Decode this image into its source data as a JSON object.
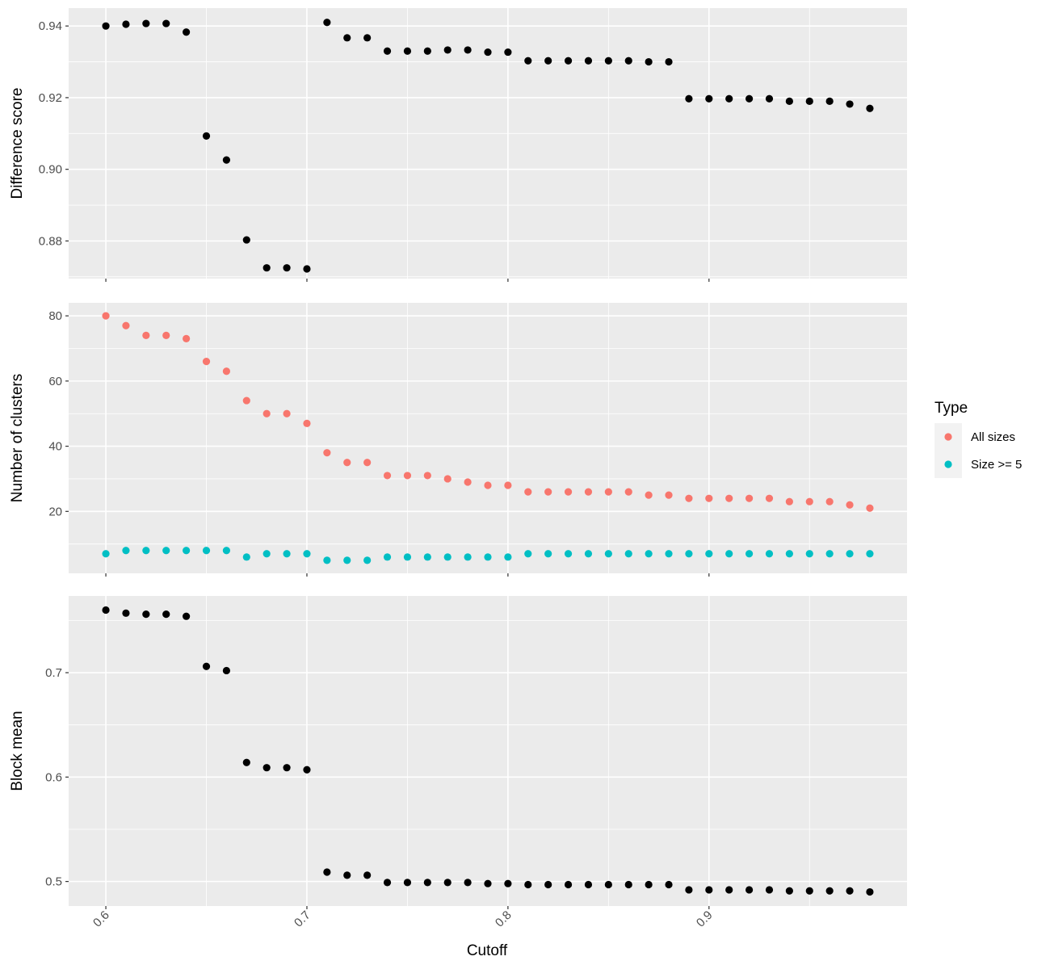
{
  "chart_data": [
    {
      "type": "scatter",
      "panel": "difference-score",
      "ylabel": "Difference score",
      "ylim": [
        0.8695,
        0.945
      ],
      "y_ticks": [
        0.88,
        0.9,
        0.92,
        0.94
      ],
      "y_tick_labels": [
        "0.88",
        "0.90",
        "0.92",
        "0.94"
      ],
      "series": [
        {
          "color": "#000000",
          "x": [
            0.6,
            0.61,
            0.62,
            0.63,
            0.64,
            0.65,
            0.66,
            0.67,
            0.68,
            0.69,
            0.7,
            0.71,
            0.72,
            0.73,
            0.74,
            0.75,
            0.76,
            0.77,
            0.78,
            0.79,
            0.8,
            0.81,
            0.82,
            0.83,
            0.84,
            0.85,
            0.86,
            0.87,
            0.88,
            0.89,
            0.9,
            0.91,
            0.92,
            0.93,
            0.94,
            0.95,
            0.96,
            0.97,
            0.98
          ],
          "y": [
            0.94,
            0.9405,
            0.9407,
            0.9407,
            0.9383,
            0.9093,
            0.9026,
            0.8803,
            0.8725,
            0.8725,
            0.8722,
            0.941,
            0.9367,
            0.9367,
            0.933,
            0.933,
            0.933,
            0.9333,
            0.9333,
            0.9327,
            0.9327,
            0.9303,
            0.9303,
            0.9303,
            0.9303,
            0.9303,
            0.9303,
            0.93,
            0.93,
            0.9197,
            0.9197,
            0.9197,
            0.9197,
            0.9197,
            0.919,
            0.919,
            0.919,
            0.9182,
            0.917
          ]
        }
      ]
    },
    {
      "type": "scatter",
      "panel": "number-of-clusters",
      "ylabel": "Number of clusters",
      "ylim": [
        1.0,
        84.0
      ],
      "y_ticks": [
        20,
        40,
        60,
        80
      ],
      "y_tick_labels": [
        "20",
        "40",
        "60",
        "80"
      ],
      "series": [
        {
          "name": "All sizes",
          "color": "#F8766D",
          "x": [
            0.6,
            0.61,
            0.62,
            0.63,
            0.64,
            0.65,
            0.66,
            0.67,
            0.68,
            0.69,
            0.7,
            0.71,
            0.72,
            0.73,
            0.74,
            0.75,
            0.76,
            0.77,
            0.78,
            0.79,
            0.8,
            0.81,
            0.82,
            0.83,
            0.84,
            0.85,
            0.86,
            0.87,
            0.88,
            0.89,
            0.9,
            0.91,
            0.92,
            0.93,
            0.94,
            0.95,
            0.96,
            0.97,
            0.98
          ],
          "y": [
            80,
            77,
            74,
            74,
            73,
            66,
            63,
            54,
            50,
            50,
            47,
            38,
            35,
            35,
            31,
            31,
            31,
            30,
            29,
            28,
            28,
            26,
            26,
            26,
            26,
            26,
            26,
            25,
            25,
            24,
            24,
            24,
            24,
            24,
            23,
            23,
            23,
            22,
            21
          ]
        },
        {
          "name": "Size >= 5",
          "color": "#00BFC4",
          "x": [
            0.6,
            0.61,
            0.62,
            0.63,
            0.64,
            0.65,
            0.66,
            0.67,
            0.68,
            0.69,
            0.7,
            0.71,
            0.72,
            0.73,
            0.74,
            0.75,
            0.76,
            0.77,
            0.78,
            0.79,
            0.8,
            0.81,
            0.82,
            0.83,
            0.84,
            0.85,
            0.86,
            0.87,
            0.88,
            0.89,
            0.9,
            0.91,
            0.92,
            0.93,
            0.94,
            0.95,
            0.96,
            0.97,
            0.98
          ],
          "y": [
            7,
            8,
            8,
            8,
            8,
            8,
            8,
            6,
            7,
            7,
            7,
            5,
            5,
            5,
            6,
            6,
            6,
            6,
            6,
            6,
            6,
            7,
            7,
            7,
            7,
            7,
            7,
            7,
            7,
            7,
            7,
            7,
            7,
            7,
            7,
            7,
            7,
            7,
            7
          ]
        }
      ]
    },
    {
      "type": "scatter",
      "panel": "block-mean",
      "ylabel": "Block mean",
      "ylim": [
        0.4765,
        0.7735
      ],
      "y_ticks": [
        0.5,
        0.6,
        0.7
      ],
      "y_tick_labels": [
        "0.5",
        "0.6",
        "0.7"
      ],
      "series": [
        {
          "color": "#000000",
          "x": [
            0.6,
            0.61,
            0.62,
            0.63,
            0.64,
            0.65,
            0.66,
            0.67,
            0.68,
            0.69,
            0.7,
            0.71,
            0.72,
            0.73,
            0.74,
            0.75,
            0.76,
            0.77,
            0.78,
            0.79,
            0.8,
            0.81,
            0.82,
            0.83,
            0.84,
            0.85,
            0.86,
            0.87,
            0.88,
            0.89,
            0.9,
            0.91,
            0.92,
            0.93,
            0.94,
            0.95,
            0.96,
            0.97,
            0.98
          ],
          "y": [
            0.76,
            0.757,
            0.756,
            0.756,
            0.754,
            0.706,
            0.702,
            0.614,
            0.609,
            0.609,
            0.607,
            0.509,
            0.506,
            0.506,
            0.499,
            0.499,
            0.499,
            0.499,
            0.499,
            0.498,
            0.498,
            0.497,
            0.497,
            0.497,
            0.497,
            0.497,
            0.497,
            0.497,
            0.497,
            0.492,
            0.492,
            0.492,
            0.492,
            0.492,
            0.491,
            0.491,
            0.491,
            0.491,
            0.49
          ]
        }
      ]
    }
  ],
  "x_axis": {
    "xlabel": "Cutoff",
    "xlim": [
      0.5815,
      0.9985
    ],
    "ticks": [
      0.6,
      0.7,
      0.8,
      0.9
    ],
    "tick_labels": [
      "0.6",
      "0.7",
      "0.8",
      "0.9"
    ]
  },
  "legend": {
    "title": "Type",
    "placement": "right",
    "items": [
      {
        "label": "All sizes",
        "color": "#F8766D"
      },
      {
        "label": "Size >= 5",
        "color": "#00BFC4"
      }
    ]
  },
  "grid": true
}
